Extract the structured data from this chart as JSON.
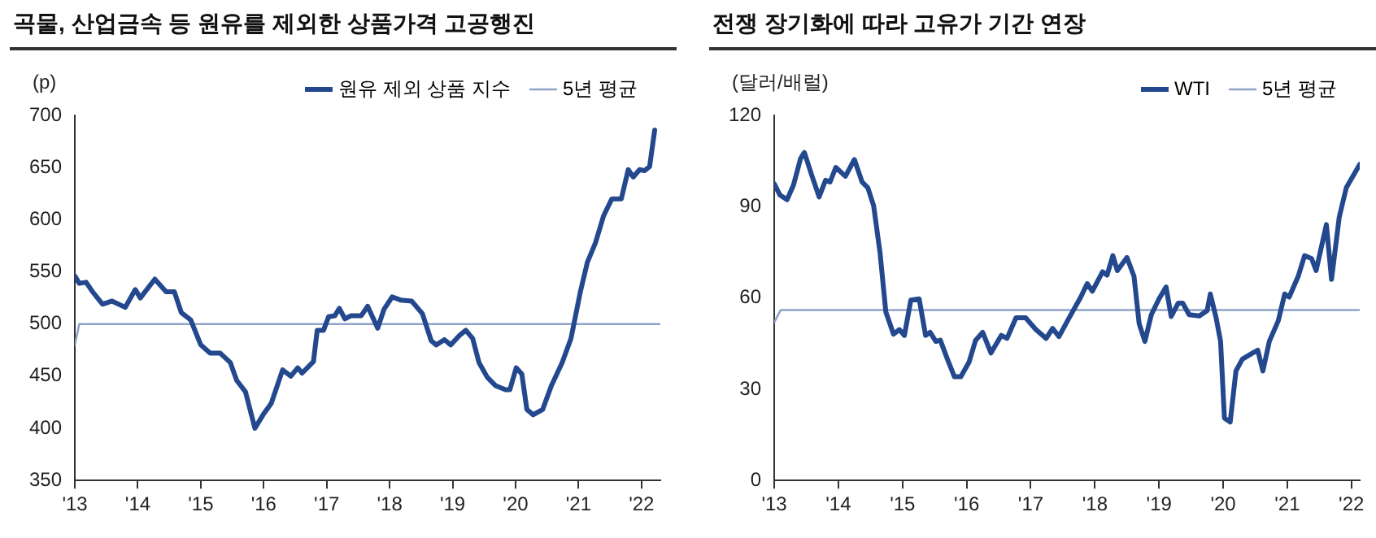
{
  "chart_data": [
    {
      "type": "line",
      "title": "곡물, 산업금속 등 원유를 제외한 상품가격 고공행진",
      "ylabel": "(p)",
      "legend": "top right",
      "grid": false,
      "marker": "none",
      "line_style": "solid",
      "xlim": [
        2013,
        2022.3
      ],
      "xticks": [
        {
          "value": 2013,
          "label": "'13"
        },
        {
          "value": 2014,
          "label": "'14"
        },
        {
          "value": 2015,
          "label": "'15"
        },
        {
          "value": 2016,
          "label": "'16"
        },
        {
          "value": 2017,
          "label": "'17"
        },
        {
          "value": 2018,
          "label": "'18"
        },
        {
          "value": 2019,
          "label": "'19"
        },
        {
          "value": 2020,
          "label": "'20"
        },
        {
          "value": 2021,
          "label": "'21"
        },
        {
          "value": 2022,
          "label": "'22"
        }
      ],
      "ylim": [
        350,
        700
      ],
      "yticks": [
        350,
        400,
        450,
        500,
        550,
        600,
        650,
        700
      ],
      "series": [
        {
          "name": "원유 제외 상품 지수",
          "color": "#23488e",
          "x": [
            2013,
            2013.07,
            2013.18,
            2013.28,
            2013.44,
            2013.59,
            2013.8,
            2013.96,
            2014.04,
            2014.27,
            2014.45,
            2014.58,
            2014.69,
            2014.84,
            2015,
            2015.15,
            2015.31,
            2015.47,
            2015.57,
            2015.71,
            2015.86,
            2015.99,
            2016.12,
            2016.3,
            2016.43,
            2016.54,
            2016.61,
            2016.79,
            2016.85,
            2016.95,
            2017.03,
            2017.13,
            2017.2,
            2017.29,
            2017.39,
            2017.55,
            2017.65,
            2017.81,
            2017.91,
            2018.04,
            2018.17,
            2018.35,
            2018.52,
            2018.66,
            2018.74,
            2018.87,
            2018.97,
            2019.11,
            2019.21,
            2019.32,
            2019.42,
            2019.55,
            2019.68,
            2019.84,
            2019.91,
            2020.01,
            2020.1,
            2020.18,
            2020.28,
            2020.43,
            2020.57,
            2020.74,
            2020.88,
            2021.03,
            2021.14,
            2021.27,
            2021.4,
            2021.53,
            2021.68,
            2021.79,
            2021.87,
            2021.97,
            2022.05,
            2022.13,
            2022.21
          ],
          "values": [
            546,
            539,
            540,
            531,
            519,
            522,
            516,
            533,
            525,
            543,
            531,
            531,
            511,
            504,
            480,
            472,
            472,
            463,
            446,
            435,
            400,
            413,
            424,
            456,
            450,
            458,
            453,
            464,
            494,
            494,
            507,
            508,
            515,
            505,
            508,
            508,
            517,
            496,
            514,
            526,
            523,
            522,
            510,
            484,
            480,
            485,
            480,
            489,
            494,
            486,
            463,
            449,
            441,
            437,
            437,
            458,
            452,
            418,
            413,
            418,
            441,
            463,
            486,
            531,
            559,
            578,
            604,
            620,
            620,
            648,
            641,
            648,
            647,
            651,
            686
          ]
        },
        {
          "name": "5년 평균",
          "color": "#8fa3c8",
          "x": [
            2013,
            2013.07,
            2022.3
          ],
          "values": [
            480,
            500,
            500
          ]
        }
      ]
    },
    {
      "type": "line",
      "title": "전쟁 장기화에 따라 고유가 기간 연장",
      "ylabel": "(달러/배럴)",
      "legend": "top right",
      "grid": false,
      "marker": "none",
      "line_style": "solid",
      "xlim": [
        2013,
        2022.13
      ],
      "xticks": [
        {
          "value": 2013,
          "label": "'13"
        },
        {
          "value": 2014,
          "label": "'14"
        },
        {
          "value": 2015,
          "label": "'15"
        },
        {
          "value": 2016,
          "label": "'16"
        },
        {
          "value": 2017,
          "label": "'17"
        },
        {
          "value": 2018,
          "label": "'18"
        },
        {
          "value": 2019,
          "label": "'19"
        },
        {
          "value": 2020,
          "label": "'20"
        },
        {
          "value": 2021,
          "label": "'21"
        },
        {
          "value": 2022,
          "label": "'22"
        }
      ],
      "ylim": [
        0,
        120
      ],
      "yticks": [
        0,
        30,
        60,
        90,
        120
      ],
      "series": [
        {
          "name": "WTI",
          "color": "#23488e",
          "x": [
            2013,
            2013.09,
            2013.2,
            2013.3,
            2013.41,
            2013.47,
            2013.59,
            2013.7,
            2013.8,
            2013.87,
            2013.96,
            2014.11,
            2014.25,
            2014.37,
            2014.46,
            2014.55,
            2014.65,
            2014.74,
            2014.86,
            2014.95,
            2015.03,
            2015.13,
            2015.26,
            2015.36,
            2015.43,
            2015.52,
            2015.59,
            2015.7,
            2015.81,
            2015.91,
            2016.04,
            2016.14,
            2016.25,
            2016.38,
            2016.54,
            2016.63,
            2016.77,
            2016.92,
            2017.08,
            2017.24,
            2017.34,
            2017.44,
            2017.6,
            2017.78,
            2017.88,
            2017.96,
            2018.12,
            2018.19,
            2018.28,
            2018.35,
            2018.5,
            2018.61,
            2018.69,
            2018.78,
            2018.88,
            2019,
            2019.11,
            2019.19,
            2019.3,
            2019.37,
            2019.47,
            2019.63,
            2019.75,
            2019.8,
            2019.89,
            2019.96,
            2020.02,
            2020.11,
            2020.2,
            2020.3,
            2020.46,
            2020.54,
            2020.62,
            2020.72,
            2020.86,
            2020.96,
            2021.03,
            2021.17,
            2021.27,
            2021.38,
            2021.45,
            2021.61,
            2021.69,
            2021.81,
            2021.92,
            2022.13
          ],
          "values": [
            97.5,
            93.8,
            92.3,
            97.1,
            105.8,
            107.8,
            100,
            93.2,
            98.7,
            98.1,
            102.9,
            100,
            105.5,
            98.1,
            96.2,
            90.3,
            74.8,
            55.4,
            48.1,
            49.6,
            47.7,
            59.3,
            59.7,
            47.7,
            48.7,
            45.7,
            46.1,
            39.9,
            34.1,
            34.1,
            39,
            46.1,
            48.7,
            41.9,
            47.7,
            46.7,
            53.5,
            53.5,
            49.6,
            46.7,
            50,
            47.3,
            53.5,
            60.3,
            64.7,
            62.2,
            68.6,
            67.5,
            73.9,
            69,
            73.3,
            67.1,
            51.6,
            45.7,
            54.5,
            59.7,
            63.6,
            53.9,
            58.3,
            58.3,
            54.5,
            54.1,
            55.8,
            61.3,
            53.5,
            45.7,
            20.5,
            19.2,
            36,
            39.9,
            41.9,
            42.8,
            36,
            45.7,
            52.5,
            61.3,
            60.3,
            67.1,
            73.9,
            72.9,
            69,
            84.1,
            66.1,
            86.5,
            96.2,
            103.9
          ]
        },
        {
          "name": "5년 평균",
          "color": "#8fa3c8",
          "x": [
            2013,
            2013.1,
            2022.13
          ],
          "values": [
            52,
            56,
            56
          ]
        }
      ]
    }
  ]
}
